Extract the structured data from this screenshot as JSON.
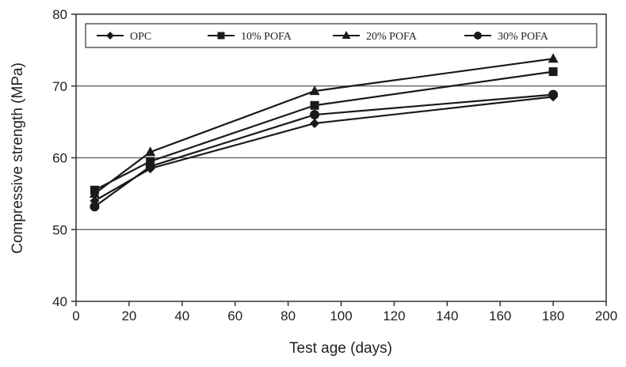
{
  "chart_data": {
    "type": "line",
    "title": "",
    "xlabel": "Test age (days)",
    "ylabel": "Compressive strength (MPa)",
    "xlim": [
      0,
      200
    ],
    "ylim": [
      40,
      80
    ],
    "xticks": [
      0,
      20,
      40,
      60,
      80,
      100,
      120,
      140,
      160,
      180,
      200
    ],
    "yticks": [
      40,
      50,
      60,
      70,
      80
    ],
    "grid": "horizontal",
    "legend_position": "top",
    "x": [
      7,
      28,
      90,
      180
    ],
    "series": [
      {
        "name": "OPC",
        "marker": "diamond",
        "values": [
          54.0,
          58.5,
          64.8,
          68.5
        ]
      },
      {
        "name": "10% POFA",
        "marker": "square",
        "values": [
          55.5,
          59.5,
          67.3,
          72.0
        ]
      },
      {
        "name": "20% POFA",
        "marker": "triangle",
        "values": [
          55.0,
          60.8,
          69.3,
          73.8
        ]
      },
      {
        "name": "30% POFA",
        "marker": "circle",
        "values": [
          53.2,
          58.8,
          66.0,
          68.8
        ]
      }
    ],
    "colors": {
      "line": "#1a1a1a",
      "grid": "#555555",
      "axis": "#333333"
    }
  }
}
